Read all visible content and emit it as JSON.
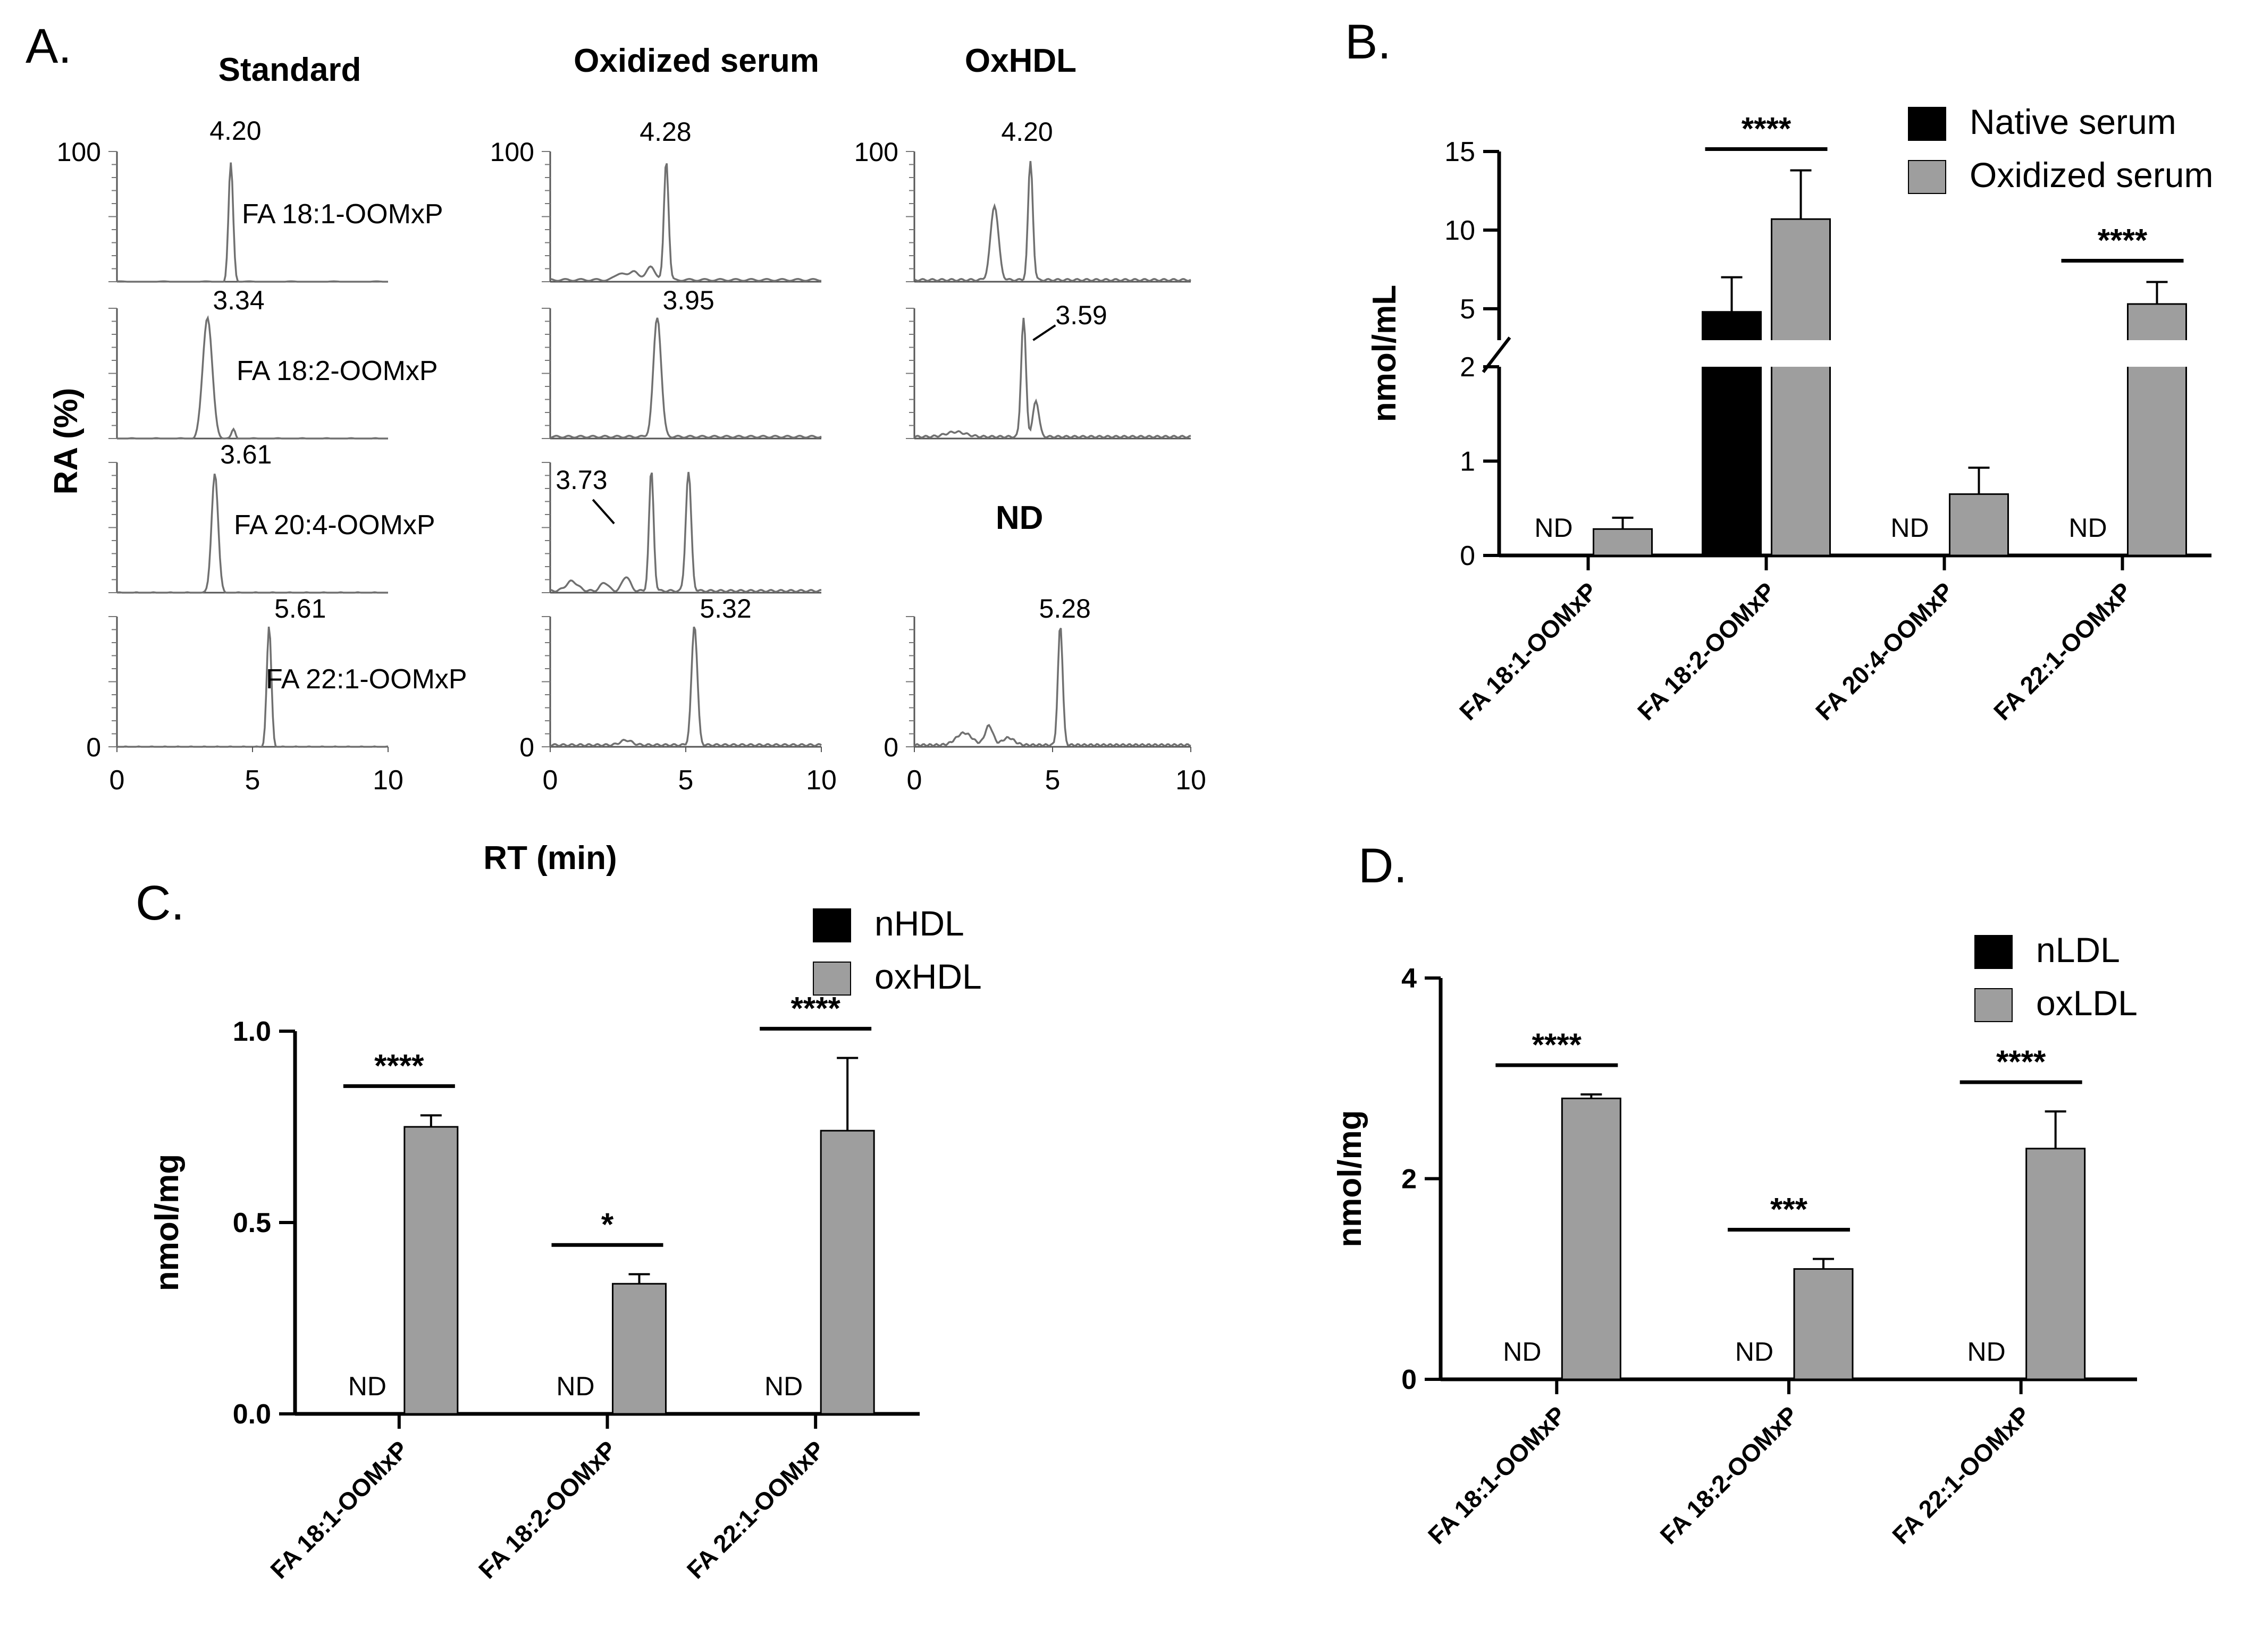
{
  "panel_labels": {
    "A": "A.",
    "B": "B.",
    "C": "C.",
    "D": "D."
  },
  "chart_data": [
    {
      "panel": "A",
      "type": "line",
      "description_title": "LC-MS chromatograms",
      "xlabel": "RT (min)",
      "ylabel": "RA (%)",
      "xlim": [
        0,
        10
      ],
      "ylim": [
        0,
        100
      ],
      "xticks": [
        "0",
        "5",
        "10"
      ],
      "yticks": [
        "0",
        "100"
      ],
      "columns": [
        {
          "title": "Standard",
          "rows": [
            {
              "analyte": "FA 18:1-OOMxP",
              "peaks": [
                "4.20"
              ]
            },
            {
              "analyte": "FA 18:2-OOMxP",
              "peaks": [
                "3.34"
              ]
            },
            {
              "analyte": "FA 20:4-OOMxP",
              "peaks": [
                "3.61"
              ]
            },
            {
              "analyte": "FA 22:1-OOMxP",
              "peaks": [
                "5.61"
              ]
            }
          ]
        },
        {
          "title": "Oxidized serum",
          "rows": [
            {
              "analyte": "FA 18:1-OOMxP",
              "peaks": [
                "4.28"
              ]
            },
            {
              "analyte": "FA 18:2-OOMxP",
              "peaks": [
                "3.95"
              ]
            },
            {
              "analyte": "FA 20:4-OOMxP",
              "peaks": [
                "3.73"
              ]
            },
            {
              "analyte": "FA 22:1-OOMxP",
              "peaks": [
                "5.32"
              ]
            }
          ]
        },
        {
          "title": "OxHDL",
          "rows": [
            {
              "analyte": "FA 18:1-OOMxP",
              "peaks": [
                "4.20"
              ]
            },
            {
              "analyte": "FA 18:2-OOMxP",
              "peaks": [
                "3.59"
              ]
            },
            {
              "analyte": "FA 20:4-OOMxP",
              "peaks": [],
              "note": "ND"
            },
            {
              "analyte": "FA 22:1-OOMxP",
              "peaks": [
                "5.28"
              ]
            }
          ]
        }
      ]
    },
    {
      "panel": "B",
      "type": "bar",
      "categories": [
        "FA 18:1-OOMxP",
        "FA 18:2-OOMxP",
        "FA 20:4-OOMxP",
        "FA 22:1-OOMxP"
      ],
      "series": [
        {
          "name": "Native serum",
          "color": "#000000",
          "values": [
            0,
            4.8,
            0,
            0
          ],
          "errors": [
            0,
            2.2,
            0,
            0
          ],
          "nd": [
            true,
            false,
            true,
            true
          ]
        },
        {
          "name": "Oxidized serum",
          "color": "#9e9e9e",
          "values": [
            0.28,
            10.7,
            0.65,
            5.3
          ],
          "errors": [
            0.12,
            3.1,
            0.28,
            1.4
          ],
          "nd": [
            false,
            false,
            false,
            false
          ]
        }
      ],
      "ylabel": "nmol/mL",
      "xlabel": "",
      "ylim": [
        0,
        15
      ],
      "axis_break": [
        2,
        3
      ],
      "yticks": [
        "0",
        "1",
        "2",
        "5",
        "10",
        "15"
      ],
      "significance": [
        "",
        "****",
        "",
        "****"
      ],
      "nd_label": "ND",
      "legend": "top-right"
    },
    {
      "panel": "C",
      "type": "bar",
      "categories": [
        "FA 18:1-OOMxP",
        "FA 18:2-OOMxP",
        "FA 22:1-OOMxP"
      ],
      "series": [
        {
          "name": "nHDL",
          "color": "#000000",
          "values": [
            0,
            0,
            0
          ],
          "errors": [
            0,
            0,
            0
          ],
          "nd": [
            true,
            true,
            true
          ]
        },
        {
          "name": "oxHDL",
          "color": "#9e9e9e",
          "values": [
            0.75,
            0.34,
            0.74
          ],
          "errors": [
            0.03,
            0.025,
            0.19
          ],
          "nd": [
            false,
            false,
            false
          ]
        }
      ],
      "ylabel": "nmol/mg",
      "xlabel": "",
      "ylim": [
        0,
        1.0
      ],
      "yticks": [
        "0.0",
        "0.5",
        "1.0"
      ],
      "significance": [
        "****",
        "*",
        "****"
      ],
      "nd_label": "ND",
      "legend": "top-right"
    },
    {
      "panel": "D",
      "type": "bar",
      "categories": [
        "FA 18:1-OOMxP",
        "FA 18:2-OOMxP",
        "FA 22:1-OOMxP"
      ],
      "series": [
        {
          "name": "nLDL",
          "color": "#000000",
          "values": [
            0,
            0,
            0
          ],
          "errors": [
            0,
            0,
            0
          ],
          "nd": [
            true,
            true,
            true
          ]
        },
        {
          "name": "oxLDL",
          "color": "#9e9e9e",
          "values": [
            2.8,
            1.1,
            2.3
          ],
          "errors": [
            0.04,
            0.1,
            0.37
          ],
          "nd": [
            false,
            false,
            false
          ]
        }
      ],
      "ylabel": "nmol/mg",
      "xlabel": "",
      "ylim": [
        0,
        4
      ],
      "yticks": [
        "0",
        "2",
        "4"
      ],
      "significance": [
        "****",
        "***",
        "****"
      ],
      "nd_label": "ND",
      "legend": "top-right"
    }
  ]
}
